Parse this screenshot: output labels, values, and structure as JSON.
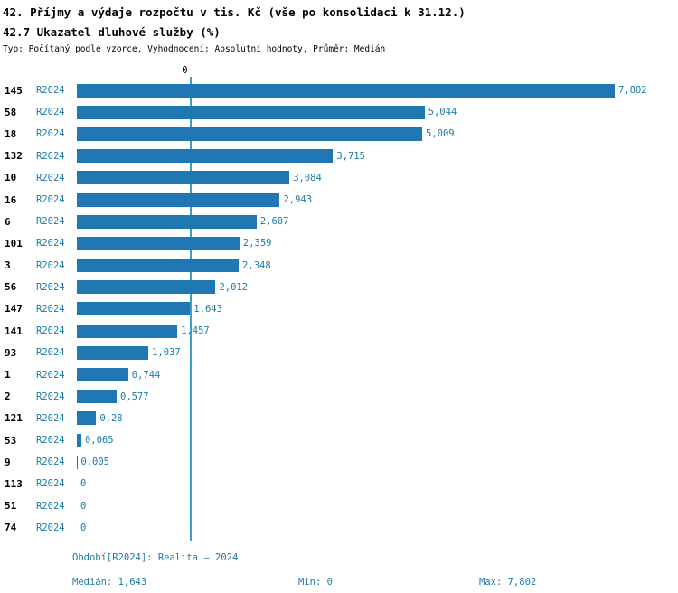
{
  "header": {
    "title_line1": "42. Příjmy a výdaje rozpočtu v tis. Kč (vše po konsolidaci k 31.12.)",
    "title_line2": "42.7 Ukazatel dluhové služby (%)",
    "subtitle": "Typ: Počítaný podle vzorce, Vyhodnocení: Absolutní hodnoty, Průměr: Medián"
  },
  "axis": {
    "zero_label": "0"
  },
  "footer": {
    "period": "Období[R2024]: Realita – 2024",
    "median": "Medián: 1,643",
    "min": "Min: 0",
    "max": "Max: 7,802"
  },
  "colors": {
    "bar": "#1f77b4",
    "blue_text": "#1c7ba6",
    "median_line": "#3b9fc6"
  },
  "chart_data": {
    "type": "bar",
    "orientation": "horizontal",
    "title": "42.7 Ukazatel dluhové služby (%)",
    "series_label": "R2024",
    "categories": [
      "145",
      "58",
      "18",
      "132",
      "10",
      "16",
      "6",
      "101",
      "3",
      "56",
      "147",
      "141",
      "93",
      "1",
      "2",
      "121",
      "53",
      "9",
      "113",
      "51",
      "74"
    ],
    "values": [
      7.802,
      5.044,
      5.009,
      3.715,
      3.084,
      2.943,
      2.607,
      2.359,
      2.348,
      2.012,
      1.643,
      1.457,
      1.037,
      0.744,
      0.577,
      0.28,
      0.065,
      0.005,
      0,
      0,
      0
    ],
    "value_labels": [
      "7,802",
      "5,044",
      "5,009",
      "3,715",
      "3,084",
      "2,943",
      "2,607",
      "2,359",
      "2,348",
      "2,012",
      "1,643",
      "1,457",
      "1,037",
      "0,744",
      "0,577",
      "0,28",
      "0,065",
      "0,005",
      "0",
      "0",
      "0"
    ],
    "xlim": [
      0,
      7.802
    ],
    "median": 1.643,
    "min": 0,
    "max": 7.802,
    "grid": false,
    "legend_position": "none"
  }
}
